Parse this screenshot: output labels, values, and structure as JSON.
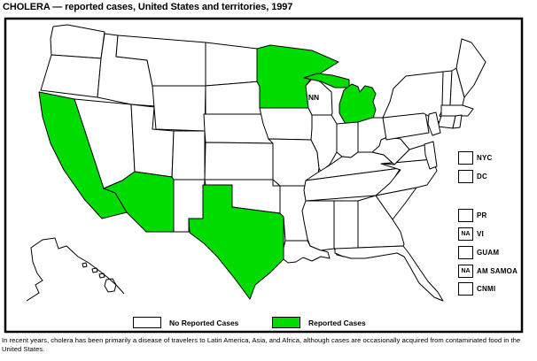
{
  "title": "CHOLERA — reported cases, United States and territories, 1997",
  "map": {
    "nn_label": "NN",
    "na_label": "NA",
    "states_reported": [
      "CA",
      "AZ",
      "TX",
      "MN",
      "MI"
    ],
    "states_not_notifiable": [
      "WI"
    ],
    "territories": [
      {
        "label": "NYC",
        "status": "none"
      },
      {
        "label": "DC",
        "status": "none"
      },
      {
        "label": "PR",
        "status": "none"
      },
      {
        "label": "VI",
        "status": "na"
      },
      {
        "label": "GUAM",
        "status": "none"
      },
      {
        "label": "AM SAMOA",
        "status": "na"
      },
      {
        "label": "CNMI",
        "status": "none"
      }
    ]
  },
  "legend": {
    "no_cases_label": "No Reported Cases",
    "cases_label": "Reported Cases"
  },
  "colors": {
    "reported": "#00dc00",
    "none": "#ffffff",
    "border": "#000000"
  },
  "footnote": "In recent years, cholera has been primarily a disease of travelers to Latin America, Asia, and Africa, although cases are occasionally acquired from contaminated food in the United States."
}
